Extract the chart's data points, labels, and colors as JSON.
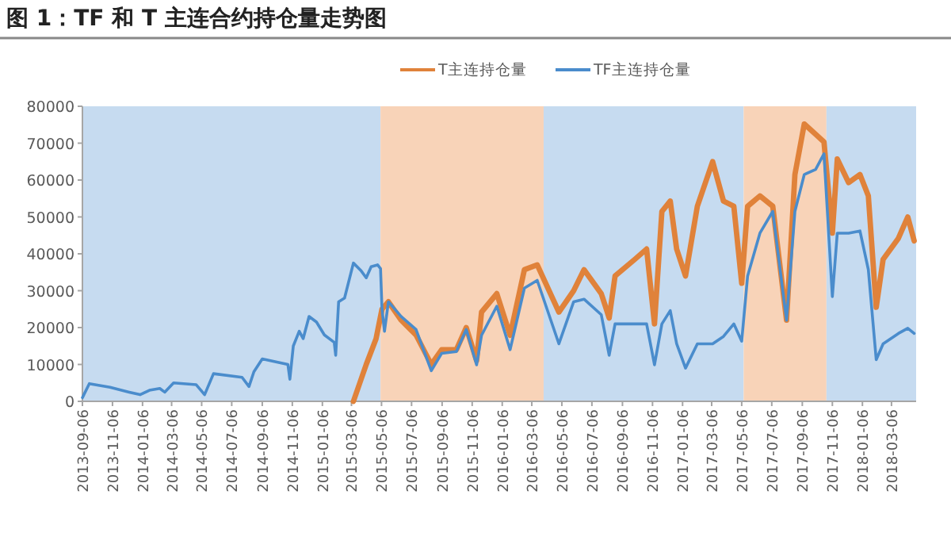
{
  "chart_data": {
    "type": "line",
    "title": "图 1：TF 和 T 主连合约持仓量走势图",
    "xlim": [
      "2013-09-06",
      "2018-04-25"
    ],
    "xticks": [
      {
        "value": "2013-09-06",
        "label": "2013-09-06"
      },
      {
        "value": "2013-11-06",
        "label": "2013-11-06"
      },
      {
        "value": "2014-01-06",
        "label": "2014-01-06"
      },
      {
        "value": "2014-03-06",
        "label": "2014-03-06"
      },
      {
        "value": "2014-05-06",
        "label": "2014-05-06"
      },
      {
        "value": "2014-07-06",
        "label": "2014-07-06"
      },
      {
        "value": "2014-09-06",
        "label": "2014-09-06"
      },
      {
        "value": "2014-11-06",
        "label": "2014-11-06"
      },
      {
        "value": "2015-01-06",
        "label": "2015-01-06"
      },
      {
        "value": "2015-03-06",
        "label": "2015-03-06"
      },
      {
        "value": "2015-05-06",
        "label": "2015-05-06"
      },
      {
        "value": "2015-07-06",
        "label": "2015-07-06"
      },
      {
        "value": "2015-09-06",
        "label": "2015-09-06"
      },
      {
        "value": "2015-11-06",
        "label": "2015-11-06"
      },
      {
        "value": "2016-01-06",
        "label": "2016-01-06"
      },
      {
        "value": "2016-03-06",
        "label": "2016-03-06"
      },
      {
        "value": "2016-05-06",
        "label": "2016-05-06"
      },
      {
        "value": "2016-07-06",
        "label": "2016-07-06"
      },
      {
        "value": "2016-09-06",
        "label": "2016-09-06"
      },
      {
        "value": "2016-11-06",
        "label": "2016-11-06"
      },
      {
        "value": "2017-01-06",
        "label": "2017-01-06"
      },
      {
        "value": "2017-03-06",
        "label": "2017-03-06"
      },
      {
        "value": "2017-05-06",
        "label": "2017-05-06"
      },
      {
        "value": "2017-07-06",
        "label": "2017-07-06"
      },
      {
        "value": "2017-09-06",
        "label": "2017-09-06"
      },
      {
        "value": "2017-11-06",
        "label": "2017-11-06"
      },
      {
        "value": "2018-01-06",
        "label": "2018-01-06"
      },
      {
        "value": "2018-03-06",
        "label": "2018-03-06"
      }
    ],
    "ylim": [
      0,
      80000
    ],
    "yticks": [
      0,
      10000,
      20000,
      30000,
      40000,
      50000,
      60000,
      70000,
      80000
    ],
    "grid": false,
    "legend": "top",
    "bands": [
      {
        "axis": "x",
        "from": "2013-09-06",
        "to": "2015-05-04",
        "color": "#c6dbf0"
      },
      {
        "axis": "x",
        "from": "2015-05-04",
        "to": "2016-03-30",
        "color": "#f8d3b8"
      },
      {
        "axis": "x",
        "from": "2016-03-30",
        "to": "2017-05-10",
        "color": "#c6dbf0"
      },
      {
        "axis": "x",
        "from": "2017-05-10",
        "to": "2017-10-25",
        "color": "#f8d3b8"
      },
      {
        "axis": "x",
        "from": "2017-10-25",
        "to": "2018-04-25",
        "color": "#c6dbf0"
      }
    ],
    "series": [
      {
        "name": "T主连持仓量",
        "color": "#e0823a",
        "x": [
          "2015-03-10",
          "2015-04-05",
          "2015-04-25",
          "2015-05-07",
          "2015-05-20",
          "2015-06-15",
          "2015-07-15",
          "2015-08-15",
          "2015-09-05",
          "2015-10-05",
          "2015-10-25",
          "2015-11-15",
          "2015-11-25",
          "2015-12-26",
          "2016-01-22",
          "2016-02-20",
          "2016-03-17",
          "2016-04-30",
          "2016-05-30",
          "2016-06-20",
          "2016-07-25",
          "2016-08-10",
          "2016-08-22",
          "2016-10-01",
          "2016-10-25",
          "2016-11-10",
          "2016-11-25",
          "2016-12-12",
          "2016-12-25",
          "2017-01-12",
          "2017-02-05",
          "2017-03-08",
          "2017-03-30",
          "2017-04-20",
          "2017-05-06",
          "2017-05-18",
          "2017-06-12",
          "2017-07-08",
          "2017-08-05",
          "2017-08-22",
          "2017-09-10",
          "2017-10-03",
          "2017-10-20",
          "2017-11-06",
          "2017-11-16",
          "2017-12-09",
          "2018-01-01",
          "2018-01-18",
          "2018-02-03",
          "2018-02-17",
          "2018-03-20",
          "2018-04-08",
          "2018-04-21"
        ],
        "values": [
          0,
          10000,
          17000,
          25000,
          27000,
          22000,
          18000,
          10000,
          14000,
          14000,
          20000,
          11000,
          24200,
          29200,
          17900,
          35700,
          37000,
          24200,
          30000,
          35700,
          29200,
          22600,
          34000,
          38500,
          41300,
          21000,
          51500,
          54300,
          41300,
          34000,
          52900,
          65000,
          54300,
          52900,
          32000,
          52900,
          55700,
          52900,
          22000,
          61500,
          75200,
          72400,
          70300,
          45600,
          65700,
          59300,
          61500,
          55700,
          25500,
          38500,
          44200,
          50000,
          43500
        ]
      },
      {
        "name": "TF主连持仓量",
        "color": "#4a8ccc",
        "x": [
          "2013-09-06",
          "2013-09-20",
          "2013-11-01",
          "2013-12-10",
          "2014-01-01",
          "2014-01-20",
          "2014-02-10",
          "2014-02-20",
          "2014-03-10",
          "2014-04-25",
          "2014-05-12",
          "2014-05-30",
          "2014-07-27",
          "2014-08-10",
          "2014-08-20",
          "2014-09-06",
          "2014-10-28",
          "2014-11-01",
          "2014-11-08",
          "2014-11-20",
          "2014-11-28",
          "2014-12-10",
          "2014-12-25",
          "2015-01-10",
          "2015-01-30",
          "2015-02-02",
          "2015-02-08",
          "2015-02-20",
          "2015-03-10",
          "2015-03-25",
          "2015-04-05",
          "2015-04-15",
          "2015-04-28",
          "2015-05-04",
          "2015-05-07",
          "2015-05-12",
          "2015-05-20",
          "2015-06-15",
          "2015-07-15",
          "2015-08-15",
          "2015-09-05",
          "2015-10-05",
          "2015-10-25",
          "2015-11-15",
          "2015-11-25",
          "2015-12-26",
          "2016-01-22",
          "2016-02-20",
          "2016-03-17",
          "2016-04-30",
          "2016-05-30",
          "2016-06-20",
          "2016-07-25",
          "2016-08-10",
          "2016-08-22",
          "2016-10-01",
          "2016-10-25",
          "2016-11-10",
          "2016-11-25",
          "2016-12-12",
          "2016-12-25",
          "2017-01-12",
          "2017-02-05",
          "2017-03-08",
          "2017-03-30",
          "2017-04-20",
          "2017-05-06",
          "2017-05-18",
          "2017-06-12",
          "2017-07-08",
          "2017-08-05",
          "2017-08-22",
          "2017-09-10",
          "2017-10-03",
          "2017-10-20",
          "2017-11-06",
          "2017-11-16",
          "2017-12-09",
          "2018-01-01",
          "2018-01-18",
          "2018-02-03",
          "2018-02-17",
          "2018-03-20",
          "2018-04-08",
          "2018-04-21"
        ],
        "values": [
          1000,
          4800,
          3800,
          2500,
          1800,
          3000,
          3500,
          2500,
          5000,
          4500,
          1800,
          7500,
          6500,
          4000,
          8000,
          11500,
          10000,
          6000,
          15000,
          19000,
          17000,
          23000,
          21500,
          18000,
          16000,
          12500,
          27000,
          28000,
          37500,
          35500,
          33500,
          36500,
          37000,
          36000,
          25000,
          19000,
          27000,
          23000,
          19500,
          8300,
          13000,
          13500,
          19500,
          9900,
          17900,
          25800,
          14000,
          30700,
          32800,
          15600,
          27000,
          27700,
          23500,
          12500,
          21000,
          21000,
          21000,
          9900,
          21000,
          24600,
          15600,
          9000,
          15600,
          15600,
          17600,
          21000,
          16300,
          34000,
          45600,
          51500,
          22000,
          51500,
          61500,
          62900,
          67100,
          28400,
          45600,
          45600,
          46200,
          35700,
          11300,
          15600,
          18400,
          19800,
          18400
        ]
      }
    ]
  }
}
